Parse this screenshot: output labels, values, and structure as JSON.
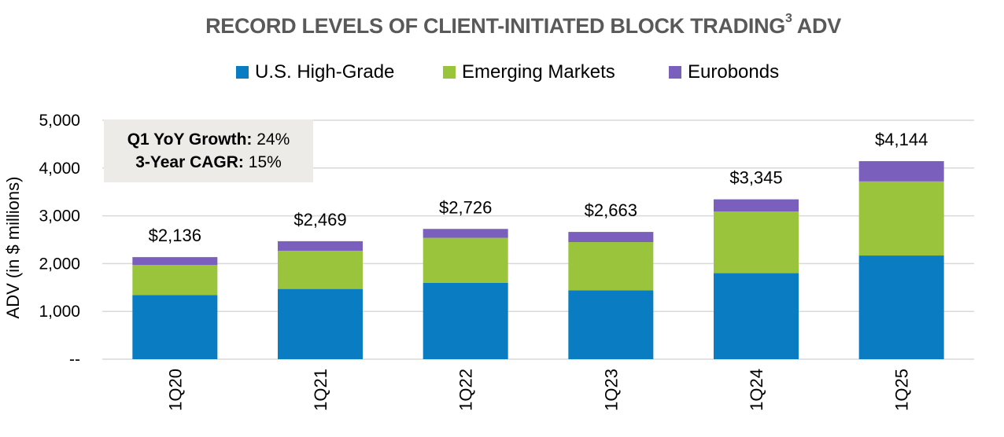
{
  "chart_data": {
    "type": "bar",
    "stacked": true,
    "title": "RECORD LEVELS OF CLIENT-INITIATED BLOCK TRADING",
    "title_superscript": "3",
    "title_suffix": "ADV",
    "ylabel": "ADV (in $ millions)",
    "xlabel": "",
    "ylim": [
      0,
      5000
    ],
    "yticks": [
      0,
      1000,
      2000,
      3000,
      4000,
      5000
    ],
    "ytick_labels": [
      "--",
      "1,000",
      "2,000",
      "3,000",
      "4,000",
      "5,000"
    ],
    "grid": true,
    "legend_placement": "top",
    "categories": [
      "1Q20",
      "1Q21",
      "1Q22",
      "1Q23",
      "1Q24",
      "1Q25"
    ],
    "series": [
      {
        "name": "U.S. High-Grade",
        "color": "#0a7dc2",
        "values": [
          1340,
          1470,
          1600,
          1440,
          1800,
          2170
        ]
      },
      {
        "name": "Emerging Markets",
        "color": "#9ac43c",
        "values": [
          630,
          800,
          940,
          1010,
          1290,
          1550
        ]
      },
      {
        "name": "Eurobonds",
        "color": "#7b5fbc",
        "values": [
          166,
          199,
          186,
          213,
          255,
          424
        ]
      }
    ],
    "totals_labels": [
      "$2,136",
      "$2,469",
      "$2,726",
      "$2,663",
      "$3,345",
      "$4,144"
    ],
    "totals": [
      2136,
      2469,
      2726,
      2663,
      3345,
      4144
    ],
    "annotation": {
      "line1_label": "Q1 YoY Growth:",
      "line1_value": "24%",
      "line2_label": "3-Year CAGR:",
      "line2_value": "15%"
    }
  }
}
